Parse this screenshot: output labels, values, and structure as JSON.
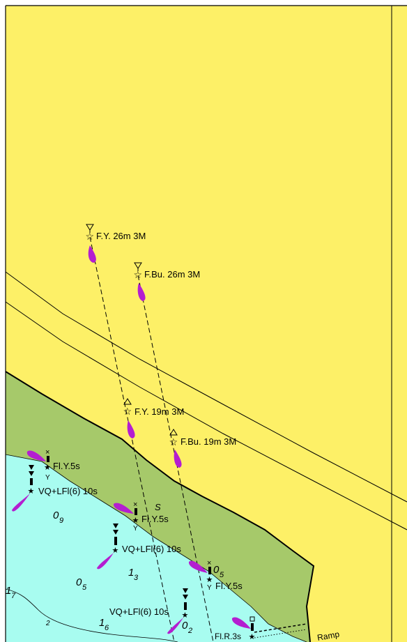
{
  "colors": {
    "land": "#fdf067",
    "intertidal": "#a6c96a",
    "water": "#a8fcf0",
    "light_flare": "#b41ed0",
    "line": "#000000"
  },
  "lights": {
    "rear_yellow": "F.Y. 26m 3M",
    "rear_blue": "F.Bu. 26m 3M",
    "front_yellow": "F.Y. 19m 3M",
    "front_blue": "F.Bu. 19m 3M"
  },
  "buoys": {
    "b1_light": "Fl.Y.5s",
    "b1_letter": "Y",
    "b1_topmark": "×",
    "b2_light": "VQ+LFl(6) 10s",
    "b3_light": "Fl.Y.5s",
    "b3_letter": "Y",
    "b3_topmark": "×",
    "b4_light": "VQ+LFl(6) 10s",
    "b5_light": "Fl.Y.5s",
    "b5_letter": "Y",
    "b5_topmark": "×",
    "b6_light": "VQ+LFl(6) 10s",
    "b7_light": "Fl.R.3s"
  },
  "soundings": {
    "s09_main": "0",
    "s09_sub": "9",
    "s05a_main": "0",
    "s05a_sub": "5",
    "s13_main": "1",
    "s13_sub": "3",
    "s05b_main": "0",
    "s05b_sub": "5",
    "s17_main": "1",
    "s17_sub": "7",
    "s16_main": "1",
    "s16_sub": "6",
    "s02_main": "0",
    "s02_sub": "2"
  },
  "misc": {
    "seabed": "S",
    "contour_label": "2",
    "ramp": "Ramp"
  }
}
